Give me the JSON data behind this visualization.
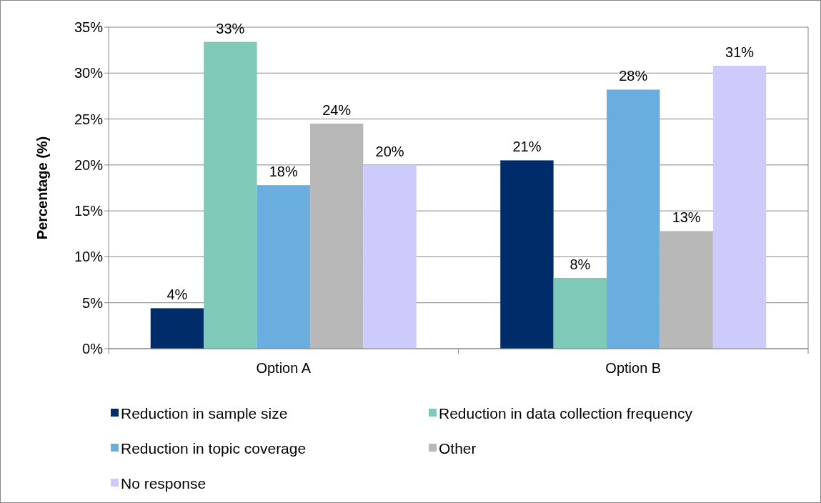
{
  "chart_data": {
    "type": "bar",
    "ylabel": "Percentage (%)",
    "categories": [
      "Option A",
      "Option B"
    ],
    "series": [
      {
        "name": "Reduction in sample size",
        "color": "#002d69",
        "values": [
          4.4,
          20.5
        ],
        "value_labels": [
          "4%",
          "21%"
        ]
      },
      {
        "name": "Reduction in data collection frequency",
        "color": "#7fc9b8",
        "values": [
          33.4,
          7.7
        ],
        "value_labels": [
          "33%",
          "8%"
        ]
      },
      {
        "name": "Reduction in topic coverage",
        "color": "#6aaee0",
        "values": [
          17.8,
          28.2
        ],
        "value_labels": [
          "18%",
          "28%"
        ]
      },
      {
        "name": "Other",
        "color": "#b8b8b8",
        "values": [
          24.5,
          12.8
        ],
        "value_labels": [
          "24%",
          "13%"
        ]
      },
      {
        "name": "No response",
        "color": "#cccbfb",
        "values": [
          20.0,
          30.8
        ],
        "value_labels": [
          "20%",
          "31%"
        ]
      }
    ],
    "ylim": [
      0,
      35
    ],
    "yticks": [
      {
        "value": 0,
        "label": "0%"
      },
      {
        "value": 5,
        "label": "5%"
      },
      {
        "value": 10,
        "label": "10%"
      },
      {
        "value": 15,
        "label": "15%"
      },
      {
        "value": 20,
        "label": "20%"
      },
      {
        "value": 25,
        "label": "25%"
      },
      {
        "value": 30,
        "label": "30%"
      },
      {
        "value": 35,
        "label": "35%"
      }
    ],
    "grid": "y",
    "legend": "bottom"
  }
}
